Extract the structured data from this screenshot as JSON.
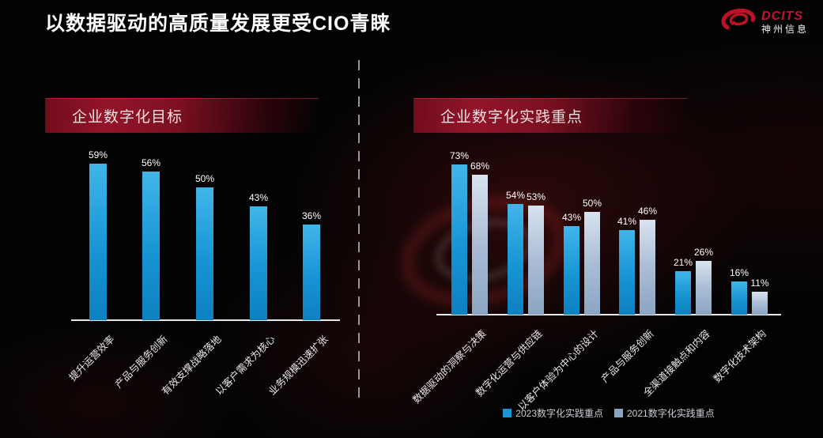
{
  "page": {
    "title": "以数据驱动的高质量发展更受CIO青睐"
  },
  "logo": {
    "brand": "DCITS",
    "company": "神州信息",
    "color": "#c8102e"
  },
  "panels": {
    "left": {
      "header": "企业数字化目标"
    },
    "right": {
      "header": "企业数字化实践重点"
    }
  },
  "chart_data": [
    {
      "type": "bar",
      "title": "企业数字化目标",
      "categories": [
        "提升运营效率",
        "产品与服务创新",
        "有效支撑战略落地",
        "以客户需求为核心",
        "业务规模迅速扩张"
      ],
      "values": [
        59,
        56,
        50,
        43,
        36
      ],
      "value_labels": [
        "59%",
        "56%",
        "50%",
        "43%",
        "36%"
      ],
      "unit": "%",
      "bar_color_top": "#41b5e9",
      "bar_color_bottom": "#0d80c1",
      "y_axis": "hidden",
      "ylim": [
        0,
        66
      ],
      "grid": "off",
      "data_labels": true
    },
    {
      "type": "bar",
      "title": "企业数字化实践重点",
      "categories": [
        "数据驱动的洞察与决策",
        "数字化运营与供应链",
        "以客户体验为中心的设计",
        "产品与服务创新",
        "全渠道接触点和内容",
        "数字化技术架构"
      ],
      "series": [
        {
          "name": "2023数字化实践重点",
          "values": [
            73,
            54,
            43,
            41,
            21,
            16
          ],
          "color": "#1795d4"
        },
        {
          "name": "2021数字化实践重点",
          "values": [
            68,
            53,
            50,
            46,
            26,
            11
          ],
          "color": "#8aa5c3"
        }
      ],
      "unit": "%",
      "y_axis": "hidden",
      "ylim": [
        0,
        82
      ],
      "grid": "off",
      "data_labels": true,
      "legend_position": "bottom"
    }
  ]
}
